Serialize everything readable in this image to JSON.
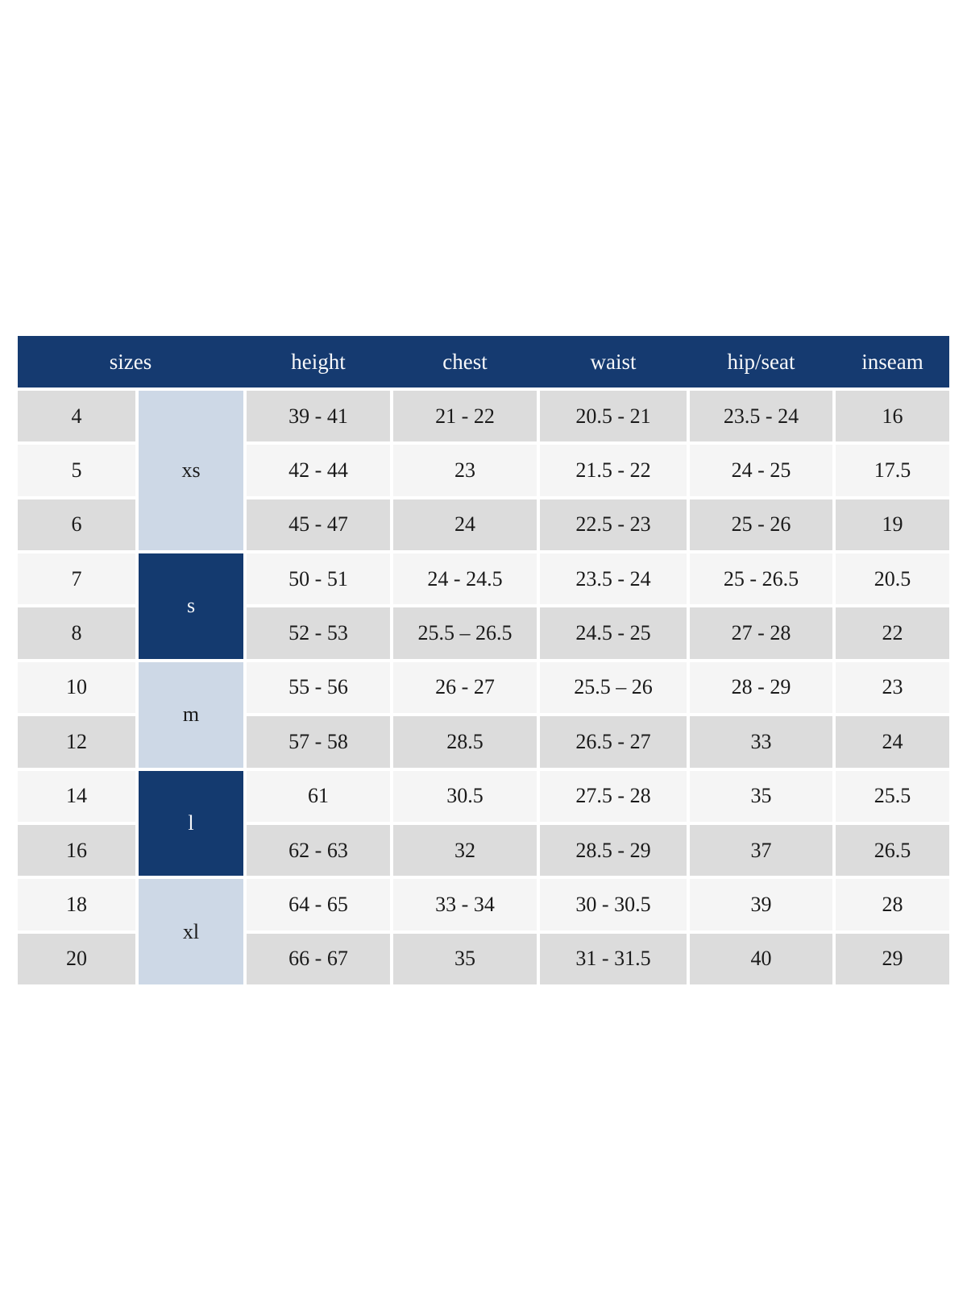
{
  "chart_data": {
    "type": "table",
    "headers": [
      "sizes",
      "height",
      "chest",
      "waist",
      "hip/seat",
      "inseam"
    ],
    "size_groups": [
      {
        "label": "xs",
        "tone": "light",
        "member_sizes": [
          "4",
          "5",
          "6"
        ]
      },
      {
        "label": "s",
        "tone": "dark",
        "member_sizes": [
          "7",
          "8"
        ]
      },
      {
        "label": "m",
        "tone": "light",
        "member_sizes": [
          "10",
          "12"
        ]
      },
      {
        "label": "l",
        "tone": "dark",
        "member_sizes": [
          "14",
          "16"
        ]
      },
      {
        "label": "xl",
        "tone": "light",
        "member_sizes": [
          "18",
          "20"
        ]
      }
    ],
    "rows": [
      {
        "size": "4",
        "height": "39 - 41",
        "chest": "21 - 22",
        "waist": "20.5 - 21",
        "hip_seat": "23.5 - 24",
        "inseam": "16"
      },
      {
        "size": "5",
        "height": "42 - 44",
        "chest": "23",
        "waist": "21.5 - 22",
        "hip_seat": "24 - 25",
        "inseam": "17.5"
      },
      {
        "size": "6",
        "height": "45 - 47",
        "chest": "24",
        "waist": "22.5 - 23",
        "hip_seat": "25 - 26",
        "inseam": "19"
      },
      {
        "size": "7",
        "height": "50 - 51",
        "chest": "24 - 24.5",
        "waist": "23.5 - 24",
        "hip_seat": "25 - 26.5",
        "inseam": "20.5"
      },
      {
        "size": "8",
        "height": "52 - 53",
        "chest": "25.5 – 26.5",
        "waist": "24.5 - 25",
        "hip_seat": "27 - 28",
        "inseam": "22"
      },
      {
        "size": "10",
        "height": "55 - 56",
        "chest": "26 - 27",
        "waist": "25.5 – 26",
        "hip_seat": "28 - 29",
        "inseam": "23"
      },
      {
        "size": "12",
        "height": "57 - 58",
        "chest": "28.5",
        "waist": "26.5 - 27",
        "hip_seat": "33",
        "inseam": "24"
      },
      {
        "size": "14",
        "height": "61",
        "chest": "30.5",
        "waist": "27.5 - 28",
        "hip_seat": "35",
        "inseam": "25.5"
      },
      {
        "size": "16",
        "height": "62 - 63",
        "chest": "32",
        "waist": "28.5 - 29",
        "hip_seat": "37",
        "inseam": "26.5"
      },
      {
        "size": "18",
        "height": "64 - 65",
        "chest": "33 - 34",
        "waist": "30 - 30.5",
        "hip_seat": "39",
        "inseam": "28"
      },
      {
        "size": "20",
        "height": "66 - 67",
        "chest": "35",
        "waist": "31 - 31.5",
        "hip_seat": "40",
        "inseam": "29"
      }
    ],
    "layout_hints": {
      "grid": "off",
      "row_striping": "gray / light alternating starting gray",
      "header_position": "top"
    }
  },
  "colors": {
    "header_bg": "#153a70",
    "header_text": "#f7f8fa",
    "group_light_bg": "#cdd8e6",
    "group_dark_bg": "#143a6f",
    "group_dark_text": "#f7f8fa",
    "row_gray": "#dcdcdc",
    "row_light": "#f5f5f5",
    "cell_text": "#1a1a1a",
    "page_bg": "#ffffff"
  }
}
